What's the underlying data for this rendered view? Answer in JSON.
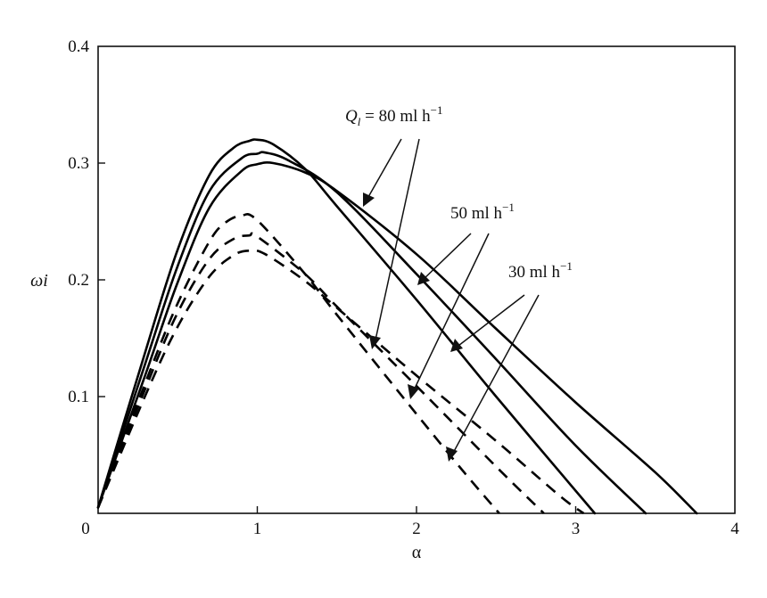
{
  "chart_data": {
    "type": "line",
    "xlabel": "α",
    "ylabel": "ωi",
    "xlim": [
      0,
      4
    ],
    "ylim": [
      0,
      0.4
    ],
    "xticks": [
      "0",
      "1",
      "2",
      "3",
      "4"
    ],
    "yticks": [
      "0.1",
      "0.2",
      "0.3",
      "0.4"
    ],
    "grid": false,
    "series": [
      {
        "flow": "80 ml h-1",
        "dashed": false,
        "x": [
          0,
          0.3,
          0.5,
          0.7,
          0.9,
          1.0,
          1.1,
          1.3,
          1.5,
          2.0,
          2.5,
          3.0,
          3.5,
          3.76
        ],
        "y": [
          0.005,
          0.12,
          0.198,
          0.262,
          0.293,
          0.299,
          0.3,
          0.292,
          0.276,
          0.222,
          0.158,
          0.095,
          0.035,
          0.0
        ]
      },
      {
        "flow": "50 ml h-1",
        "dashed": false,
        "x": [
          0,
          0.3,
          0.5,
          0.7,
          0.9,
          1.0,
          1.05,
          1.2,
          1.5,
          2.0,
          2.5,
          3.0,
          3.44
        ],
        "y": [
          0.005,
          0.13,
          0.212,
          0.276,
          0.304,
          0.308,
          0.309,
          0.302,
          0.275,
          0.205,
          0.132,
          0.058,
          0.0
        ]
      },
      {
        "flow": "30 ml h-1",
        "dashed": false,
        "x": [
          0,
          0.3,
          0.5,
          0.7,
          0.85,
          0.95,
          1.0,
          1.1,
          1.3,
          1.5,
          2.0,
          2.5,
          3.12
        ],
        "y": [
          0.005,
          0.14,
          0.226,
          0.29,
          0.313,
          0.319,
          0.32,
          0.316,
          0.295,
          0.263,
          0.183,
          0.1,
          0.0
        ]
      },
      {
        "flow": "80 ml h-1",
        "dashed": true,
        "x": [
          0,
          0.3,
          0.5,
          0.7,
          0.85,
          0.95,
          1.05,
          1.3,
          1.5,
          2.0,
          2.5,
          2.9,
          3.05
        ],
        "y": [
          0.005,
          0.102,
          0.16,
          0.203,
          0.221,
          0.225,
          0.222,
          0.199,
          0.176,
          0.118,
          0.062,
          0.015,
          0.0
        ]
      },
      {
        "flow": "50 ml h-1",
        "dashed": true,
        "x": [
          0,
          0.3,
          0.5,
          0.7,
          0.85,
          0.95,
          1.0,
          1.3,
          1.5,
          2.0,
          2.5,
          2.8
        ],
        "y": [
          0.005,
          0.108,
          0.172,
          0.218,
          0.235,
          0.238,
          0.237,
          0.205,
          0.177,
          0.109,
          0.04,
          0.0
        ]
      },
      {
        "flow": "30 ml h-1",
        "dashed": true,
        "x": [
          0,
          0.3,
          0.5,
          0.7,
          0.8,
          0.9,
          1.0,
          1.3,
          1.5,
          2.0,
          2.3,
          2.52
        ],
        "y": [
          0.005,
          0.113,
          0.18,
          0.233,
          0.249,
          0.255,
          0.251,
          0.205,
          0.17,
          0.085,
          0.035,
          0.0
        ]
      }
    ],
    "annotations": {
      "flow80": {
        "prefix": "Q",
        "sub": "l",
        "text": " = 80 ml h",
        "sup": "−1"
      },
      "flow50": {
        "text": "50 ml h",
        "sup": "−1"
      },
      "flow30": {
        "text": "30 ml h",
        "sup": "−1"
      }
    }
  }
}
